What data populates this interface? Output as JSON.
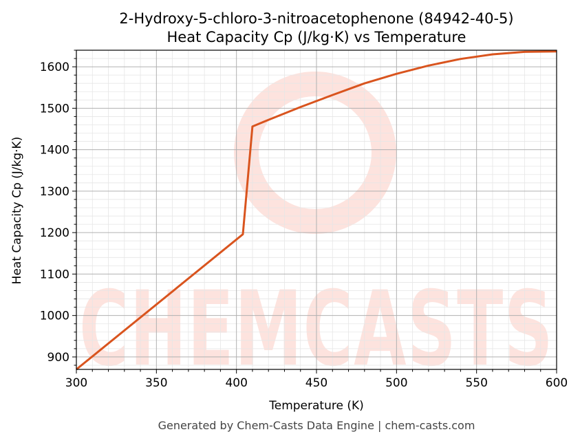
{
  "title_line1": "2-Hydroxy-5-chloro-3-nitroacetophenone (84942-40-5)",
  "title_line2": "Heat Capacity Cp (J/kg·K) vs Temperature",
  "footer": "Generated by Chem-Casts Data Engine | chem-casts.com",
  "watermark": "CHEMCASTS",
  "colors": {
    "line": "#d9541e",
    "watermark": "#fde3de",
    "grid_major": "#b0b0b0",
    "grid_minor": "#e6e6e6"
  },
  "chart_data": {
    "type": "line",
    "title": "2-Hydroxy-5-chloro-3-nitroacetophenone (84942-40-5)\nHeat Capacity Cp (J/kg·K) vs Temperature",
    "xlabel": "Temperature (K)",
    "ylabel": "Heat Capacity Cp (J/kg·K)",
    "xlim": [
      300,
      600
    ],
    "ylim": [
      870,
      1640
    ],
    "xticks": [
      300,
      350,
      400,
      450,
      500,
      550,
      600
    ],
    "yticks": [
      900,
      1000,
      1100,
      1200,
      1300,
      1400,
      1500,
      1600
    ],
    "grid": true,
    "series": [
      {
        "x": [
          300,
          404,
          410,
          420,
          440,
          460,
          480,
          500,
          520,
          540,
          560,
          580,
          600
        ],
        "values": [
          870,
          1196,
          1456,
          1472,
          1503,
          1532,
          1560,
          1583,
          1603,
          1619,
          1630,
          1636,
          1637
        ]
      }
    ]
  }
}
